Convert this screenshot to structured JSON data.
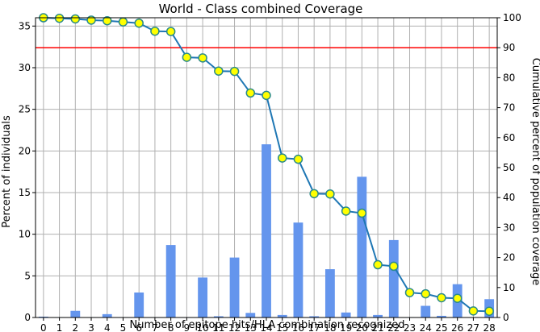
{
  "chart_data": {
    "type": "bar",
    "title": "World - Class combined Coverage",
    "xlabel": "Number of epitope hits/HLA combination recognized",
    "ylabel": "Percent of individuals",
    "y2label": "Cumulative percent of population coverage",
    "categories": [
      "0",
      "1",
      "2",
      "3",
      "4",
      "5",
      "6",
      "7",
      "8",
      "9",
      "10",
      "11",
      "12",
      "13",
      "14",
      "15",
      "16",
      "17",
      "18",
      "19",
      "20",
      "21",
      "22",
      "23",
      "24",
      "25",
      "26",
      "27",
      "28"
    ],
    "ylim": [
      0,
      36
    ],
    "y2lim": [
      0,
      100
    ],
    "yticks": [
      0,
      5,
      10,
      15,
      20,
      25,
      30,
      35
    ],
    "y2ticks": [
      0,
      10,
      20,
      30,
      40,
      50,
      60,
      70,
      80,
      90,
      100
    ],
    "grid": true,
    "series": [
      {
        "axis": "left",
        "kind": "bar",
        "color": "#6495ED",
        "values": [
          0.1,
          0.05,
          0.8,
          0.05,
          0.4,
          0.05,
          3.0,
          0.05,
          8.7,
          0.05,
          4.8,
          0.15,
          7.2,
          0.55,
          20.8,
          0.3,
          11.4,
          0.15,
          5.8,
          0.6,
          16.9,
          0.3,
          9.3,
          0.05,
          1.4,
          0.2,
          4.0,
          0.05,
          2.2
        ]
      },
      {
        "axis": "right",
        "kind": "line",
        "color": "#1f77b4",
        "marker_color": "#ffff00",
        "marker_edge": "#2a8a8a",
        "values": [
          100,
          99.8,
          99.6,
          99.2,
          99.0,
          98.6,
          98.2,
          95.5,
          95.4,
          86.8,
          86.6,
          82.2,
          82.1,
          74.9,
          74.1,
          53.2,
          52.8,
          41.3,
          41.2,
          35.5,
          34.8,
          17.6,
          17.1,
          8.3,
          7.9,
          6.6,
          6.4,
          2.2,
          2.1
        ]
      }
    ],
    "reference_line": {
      "axis": "right",
      "value": 90,
      "color": "#ff0000"
    }
  }
}
